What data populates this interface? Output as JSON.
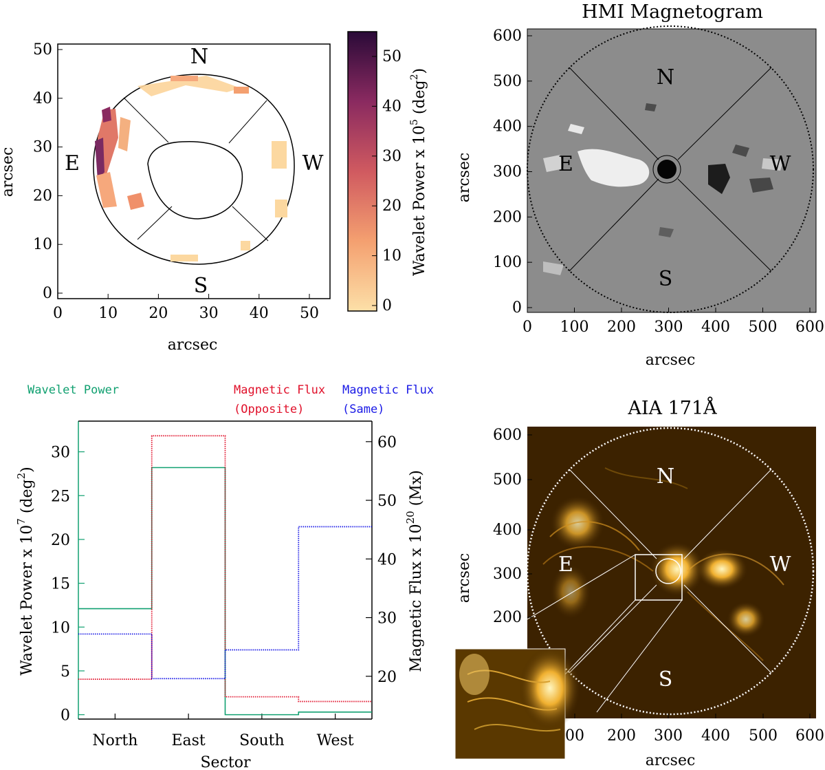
{
  "colors": {
    "green": "#10a070",
    "red": "#e0102a",
    "blue": "#1a1ae6",
    "cmap_low": "#fce0a8",
    "cmap_mid": "#e2605a",
    "cmap_high": "#2a0a38",
    "hmi_bg": "#8c8c8c",
    "aia_bg": "#3c2200"
  },
  "panel_a": {
    "x_ticks": [
      "0",
      "10",
      "20",
      "30",
      "40",
      "50"
    ],
    "y_ticks": [
      "0",
      "10",
      "20",
      "30",
      "40",
      "50"
    ],
    "xlabel": "arcsec",
    "ylabel": "arcsec",
    "directions": {
      "n": "N",
      "e": "E",
      "w": "W",
      "s": "S"
    }
  },
  "colorbar": {
    "ticks": [
      "0",
      "10",
      "20",
      "30",
      "40",
      "50"
    ],
    "label_main": "Wavelet Power x 10",
    "label_exp": "5",
    "label_unit": " (deg",
    "label_unit_exp": "2",
    "label_close": ")"
  },
  "panel_hmi": {
    "title": "HMI Magnetogram",
    "x_ticks": [
      "0",
      "100",
      "200",
      "300",
      "400",
      "500",
      "600"
    ],
    "y_ticks": [
      "0",
      "100",
      "200",
      "300",
      "400",
      "500",
      "600"
    ],
    "xlabel": "arcsec",
    "ylabel": "arcsec",
    "directions": {
      "n": "N",
      "e": "E",
      "w": "W",
      "s": "S"
    }
  },
  "panel_aia": {
    "title": "AIA 171Å",
    "x_ticks": [
      "00",
      "200",
      "300",
      "400",
      "500",
      "600"
    ],
    "y_ticks": [
      "200",
      "300",
      "400",
      "500",
      "600"
    ],
    "xlabel": "arcsec",
    "ylabel": "arcsec",
    "directions": {
      "n": "N",
      "e": "E",
      "w": "W",
      "s": "S"
    }
  },
  "legend": {
    "wavelet": "Wavelet Power",
    "flux_opp_1": "Magnetic Flux",
    "flux_opp_2": "(Opposite)",
    "flux_same_1": "Magnetic Flux",
    "flux_same_2": "(Same)"
  },
  "chart_data": {
    "type": "step",
    "title": "",
    "xlabel": "Sector",
    "categories": [
      "North",
      "East",
      "South",
      "West"
    ],
    "ylabel_left": {
      "main": "Wavelet Power x 10",
      "exp": "7",
      "unit": " (deg",
      "unit_exp": "2",
      "close": ")"
    },
    "ylabel_right": {
      "main": "Magnetic Flux x 10",
      "exp": "20",
      "unit": " (Mx)"
    },
    "ylim_left": [
      -0.5,
      33.5
    ],
    "ylim_right": [
      12.7,
      63.5
    ],
    "left_ticks": [
      "0",
      "5",
      "10",
      "15",
      "20",
      "25",
      "30"
    ],
    "right_ticks": [
      "20",
      "30",
      "40",
      "50",
      "60"
    ],
    "series": [
      {
        "name": "Wavelet Power",
        "axis": "left",
        "color": "#10a070",
        "style": "solid",
        "values": [
          12.1,
          28.2,
          0.0,
          0.3
        ]
      },
      {
        "name": "Magnetic Flux (Opposite)",
        "axis": "right",
        "color": "#e0102a",
        "style": "dotted",
        "values": [
          19.5,
          61.0,
          16.5,
          15.7
        ]
      },
      {
        "name": "Magnetic Flux (Same)",
        "axis": "right",
        "color": "#1a1ae6",
        "style": "dotted",
        "values": [
          27.2,
          19.6,
          24.5,
          45.5
        ]
      }
    ]
  }
}
